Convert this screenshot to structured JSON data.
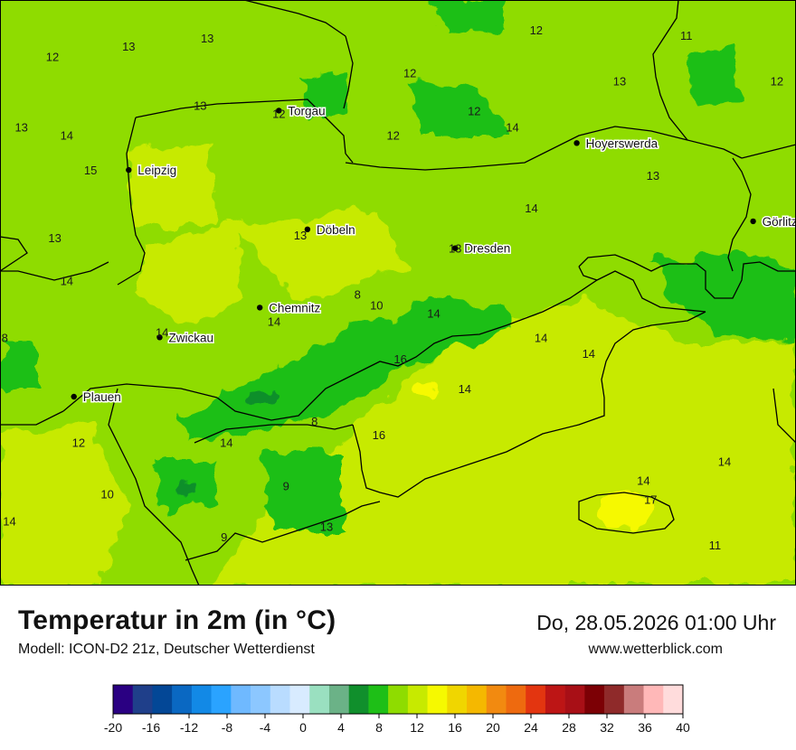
{
  "header": {
    "title": "Temperatur in 2m (in °C)",
    "model": "Modell: ICON-D2 21z, Deutscher Wetterdienst",
    "datetime": "Do, 28.05.2026 01:00 Uhr",
    "website": "www.wetterblick.com"
  },
  "cities": [
    {
      "name": "Torgau",
      "lon": 13.0,
      "lat": 51.56
    },
    {
      "name": "Hoyerswerda",
      "lon": 14.25,
      "lat": 51.44
    },
    {
      "name": "Leipzig",
      "lon": 12.37,
      "lat": 51.34
    },
    {
      "name": "Döbeln",
      "lon": 13.12,
      "lat": 51.12
    },
    {
      "name": "Dresden",
      "lon": 13.74,
      "lat": 51.05
    },
    {
      "name": "Görlitz",
      "lon": 14.99,
      "lat": 51.15
    },
    {
      "name": "Chemnitz",
      "lon": 12.92,
      "lat": 50.83
    },
    {
      "name": "Zwickau",
      "lon": 12.5,
      "lat": 50.72
    },
    {
      "name": "Plauen",
      "lon": 12.14,
      "lat": 50.5
    }
  ],
  "temperature_labels": [
    {
      "value": "12",
      "lon": 14.08,
      "lat": 51.86
    },
    {
      "value": "11",
      "lon": 14.71,
      "lat": 51.84
    },
    {
      "value": "13",
      "lon": 12.7,
      "lat": 51.83
    },
    {
      "value": "13",
      "lon": 12.37,
      "lat": 51.8
    },
    {
      "value": "12",
      "lon": 12.05,
      "lat": 51.76
    },
    {
      "value": "12",
      "lon": 13.55,
      "lat": 51.7
    },
    {
      "value": "13",
      "lon": 14.43,
      "lat": 51.67
    },
    {
      "value": "12",
      "lon": 15.09,
      "lat": 51.67
    },
    {
      "value": "13",
      "lon": 12.67,
      "lat": 51.58
    },
    {
      "value": "12",
      "lon": 13.0,
      "lat": 51.55
    },
    {
      "value": "12",
      "lon": 13.82,
      "lat": 51.56
    },
    {
      "value": "13",
      "lon": 11.92,
      "lat": 51.5
    },
    {
      "value": "14",
      "lon": 12.11,
      "lat": 51.47
    },
    {
      "value": "12",
      "lon": 13.48,
      "lat": 51.47
    },
    {
      "value": "14",
      "lon": 13.98,
      "lat": 51.5
    },
    {
      "value": "15",
      "lon": 12.21,
      "lat": 51.34
    },
    {
      "value": "13",
      "lon": 14.57,
      "lat": 51.32
    },
    {
      "value": "14",
      "lon": 14.06,
      "lat": 51.2
    },
    {
      "value": "13",
      "lon": 12.06,
      "lat": 51.09
    },
    {
      "value": "13",
      "lon": 13.09,
      "lat": 51.1
    },
    {
      "value": "13",
      "lon": 13.74,
      "lat": 51.05
    },
    {
      "value": "14",
      "lon": 12.11,
      "lat": 50.93
    },
    {
      "value": "8",
      "lon": 13.33,
      "lat": 50.88
    },
    {
      "value": "14",
      "lon": 13.65,
      "lat": 50.81
    },
    {
      "value": "14",
      "lon": 12.98,
      "lat": 50.78
    },
    {
      "value": "14",
      "lon": 12.51,
      "lat": 50.74
    },
    {
      "value": "8",
      "lon": 11.85,
      "lat": 50.72
    },
    {
      "value": "10",
      "lon": 13.41,
      "lat": 50.84
    },
    {
      "value": "16",
      "lon": 13.51,
      "lat": 50.64
    },
    {
      "value": "14",
      "lon": 13.78,
      "lat": 50.53
    },
    {
      "value": "14",
      "lon": 14.1,
      "lat": 50.72
    },
    {
      "value": "14",
      "lon": 14.3,
      "lat": 50.66
    },
    {
      "value": "8",
      "lon": 13.15,
      "lat": 50.41
    },
    {
      "value": "16",
      "lon": 13.42,
      "lat": 50.36
    },
    {
      "value": "12",
      "lon": 12.16,
      "lat": 50.33
    },
    {
      "value": "14",
      "lon": 12.78,
      "lat": 50.33
    },
    {
      "value": "14",
      "lon": 14.87,
      "lat": 50.26
    },
    {
      "value": "14",
      "lon": 14.53,
      "lat": 50.19
    },
    {
      "value": "9",
      "lon": 13.03,
      "lat": 50.17
    },
    {
      "value": "10",
      "lon": 12.28,
      "lat": 50.14
    },
    {
      "value": "17",
      "lon": 14.56,
      "lat": 50.12
    },
    {
      "value": "14",
      "lon": 11.87,
      "lat": 50.04
    },
    {
      "value": "13",
      "lon": 13.2,
      "lat": 50.02
    },
    {
      "value": "9",
      "lon": 12.77,
      "lat": 49.98
    },
    {
      "value": "11",
      "lon": 14.83,
      "lat": 49.95
    }
  ],
  "legend": {
    "ticks": [
      "-20",
      "-16",
      "-12",
      "-8",
      "-4",
      "0",
      "4",
      "8",
      "12",
      "16",
      "20",
      "24",
      "28",
      "32",
      "36",
      "40"
    ],
    "colors": [
      "#2a0082",
      "#1f3f8a",
      "#034796",
      "#0a68c2",
      "#1289e6",
      "#2aa3ff",
      "#6fb9ff",
      "#8cc7ff",
      "#b9dcff",
      "#d8ebff",
      "#9ae0c0",
      "#6bb287",
      "#108f2c",
      "#1ebf17",
      "#8fdc00",
      "#c7ea00",
      "#f6f900",
      "#f0d600",
      "#f5b800",
      "#f28a10",
      "#ee6a0f",
      "#e33510",
      "#bd1515",
      "#a80f16",
      "#7c0005",
      "#8f2a2a",
      "#c97c7c",
      "#ffb8b8",
      "#ffdcdc"
    ]
  }
}
